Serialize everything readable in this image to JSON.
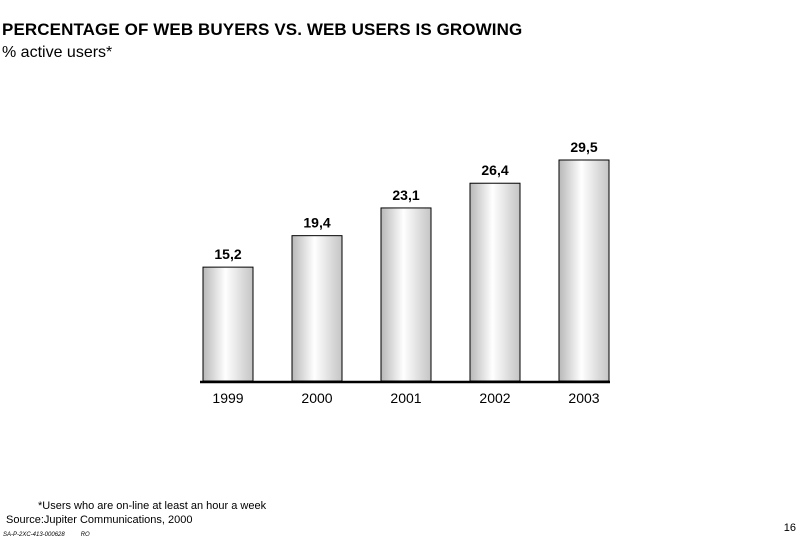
{
  "header": {
    "title": "PERCENTAGE OF WEB BUYERS VS. WEB USERS IS GROWING",
    "subtitle": "% active users*"
  },
  "chart_data": {
    "type": "bar",
    "categories": [
      "1999",
      "2000",
      "2001",
      "2002",
      "2003"
    ],
    "values": [
      15.2,
      19.4,
      23.1,
      26.4,
      29.5
    ],
    "value_labels": [
      "15,2",
      "19,4",
      "23,1",
      "26,4",
      "29,5"
    ],
    "title": "",
    "xlabel": "",
    "ylabel": "",
    "ylim": [
      0,
      29.5
    ],
    "grid": false,
    "bar_fill": "gradient-gray-white",
    "axis_color": "#000000"
  },
  "footer": {
    "note": "*Users who are on-line at least an hour a week",
    "source": "Source:Jupiter Communications, 2000",
    "doc_id": "SA-P-2XC-413-000628",
    "doc_initials": "RO",
    "page_number": "16"
  }
}
